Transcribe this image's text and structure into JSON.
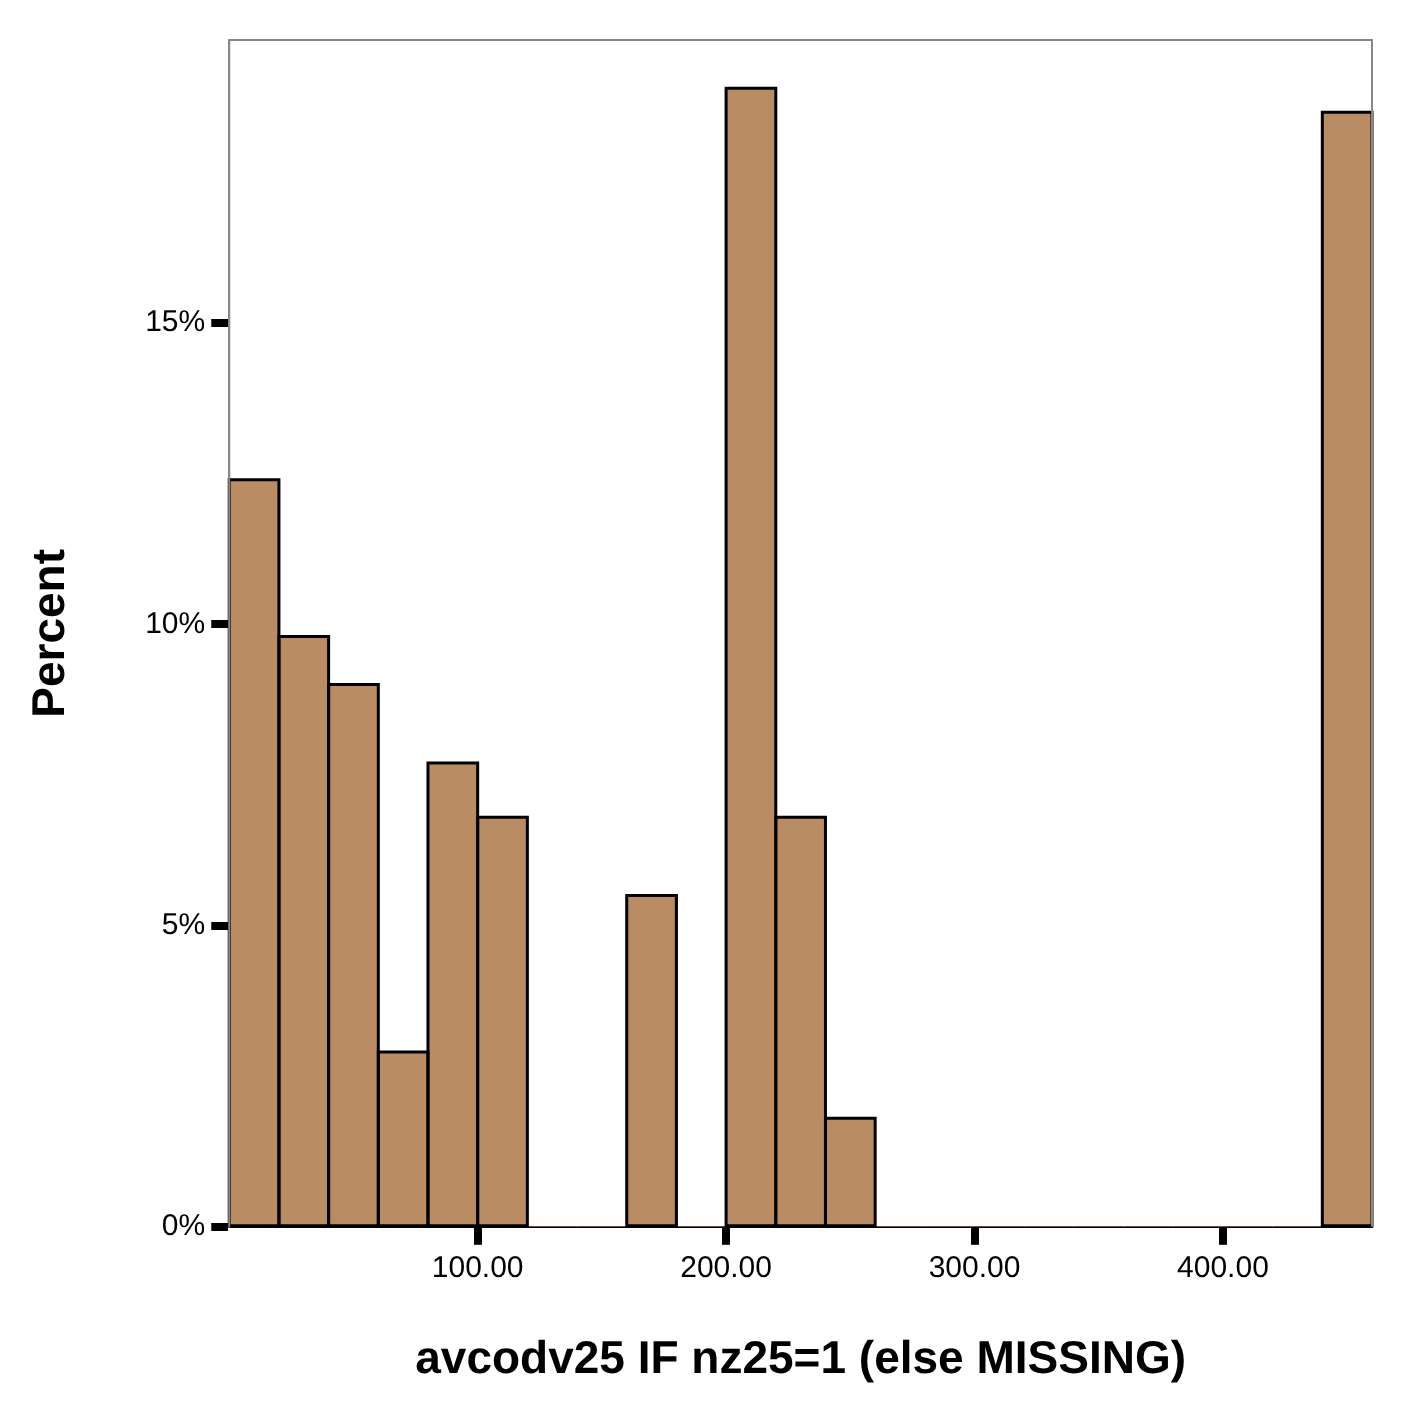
{
  "chart_data": {
    "type": "histogram",
    "xlabel": "avcodv25 IF nz25=1 (else MISSING)",
    "ylabel": "Percent",
    "bins": [
      0,
      20,
      40,
      60,
      80,
      100,
      120,
      140,
      160,
      180,
      200,
      220,
      240,
      260,
      280,
      300,
      320,
      340,
      360,
      380,
      400,
      420,
      440,
      460
    ],
    "values": [
      12.4,
      9.8,
      9.0,
      2.9,
      7.7,
      6.8,
      0,
      0,
      5.5,
      0,
      18.9,
      6.8,
      1.8,
      0,
      0,
      0,
      0,
      0,
      0,
      0,
      0,
      0,
      18.5
    ],
    "color": "#b98c64",
    "xlim": [
      0,
      460
    ],
    "xticks": [
      {
        "value": 100,
        "label": "100.00"
      },
      {
        "value": 200,
        "label": "200.00"
      },
      {
        "value": 300,
        "label": "300.00"
      },
      {
        "value": 400,
        "label": "400.00"
      }
    ],
    "ylim": [
      0,
      19.7
    ],
    "yticks": [
      {
        "value": 0,
        "label": "0%"
      },
      {
        "value": 5,
        "label": "5%"
      },
      {
        "value": 10,
        "label": "10%"
      },
      {
        "value": 15,
        "label": "15%"
      }
    ],
    "grid": false,
    "legend": false
  }
}
